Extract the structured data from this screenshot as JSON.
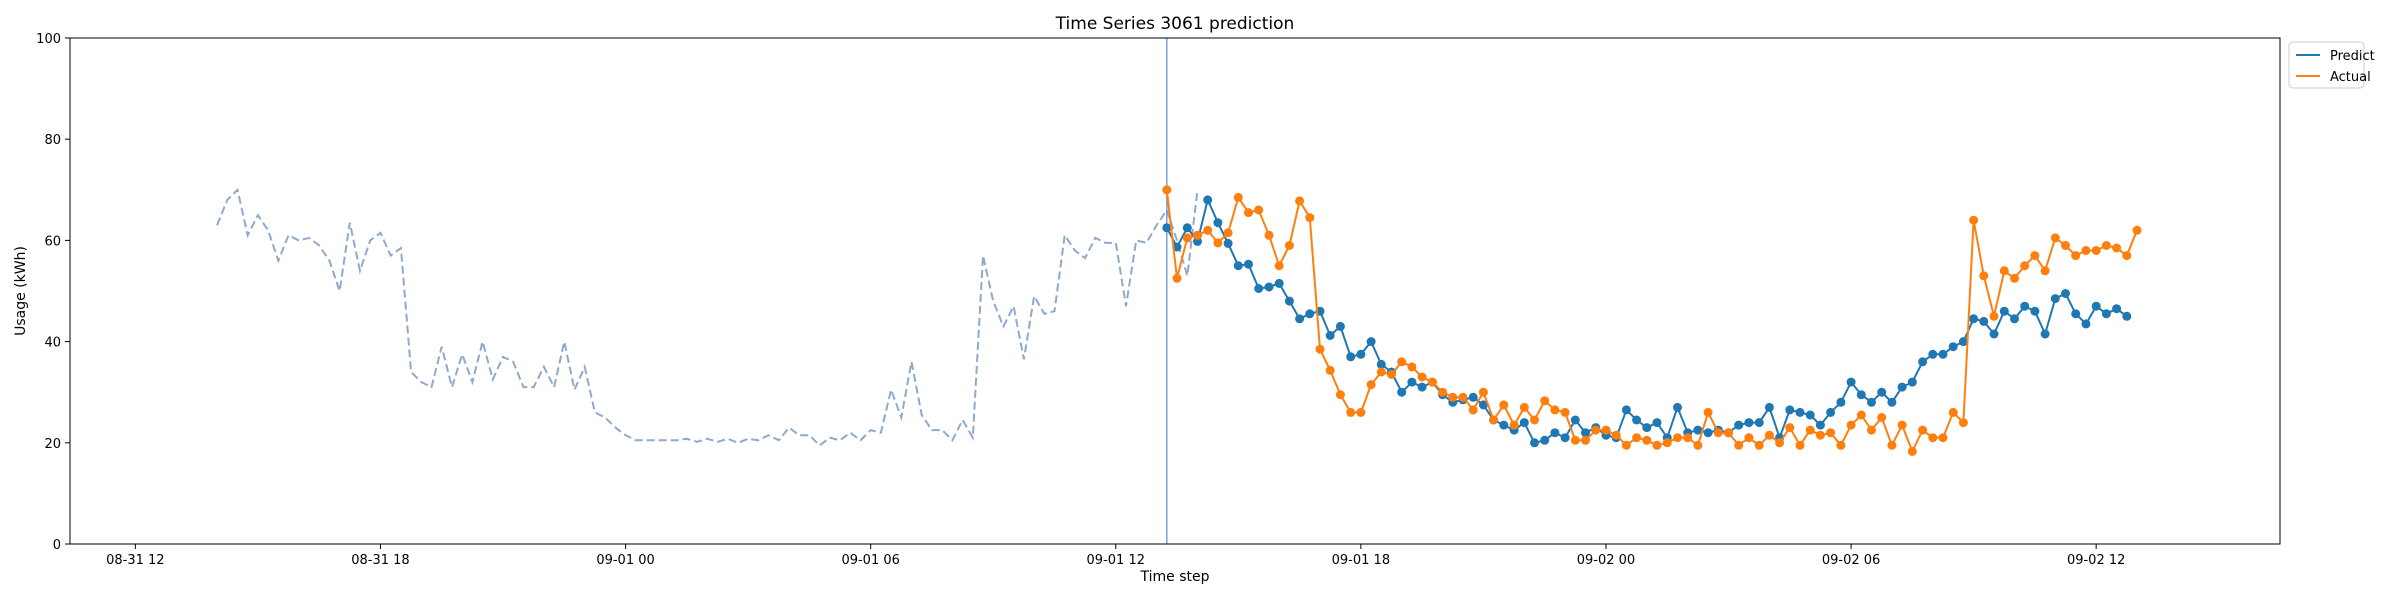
{
  "chart_data": {
    "type": "line",
    "title": "Time Series 3061 prediction",
    "xlabel": "Time step",
    "ylabel": "Usage (kWh)",
    "ylim": [
      0,
      100
    ],
    "xlim_hours": [
      -1.6,
      52.5
    ],
    "yticks": [
      0,
      20,
      40,
      60,
      80,
      100
    ],
    "xticks": [
      {
        "label": "08-31 12",
        "h": 0
      },
      {
        "label": "08-31 18",
        "h": 6
      },
      {
        "label": "09-01 00",
        "h": 12
      },
      {
        "label": "09-01 06",
        "h": 18
      },
      {
        "label": "09-01 12",
        "h": 24
      },
      {
        "label": "09-01 18",
        "h": 30
      },
      {
        "label": "09-02 00",
        "h": 36
      },
      {
        "label": "09-02 06",
        "h": 42
      },
      {
        "label": "09-02 12",
        "h": 48
      }
    ],
    "grid": false,
    "legend_position": "upper-right-outside",
    "forecast_start_h": 25.25,
    "history": {
      "start_h": 2.0,
      "step_h": 0.25,
      "color": "#8fa9cc",
      "values": [
        63,
        68,
        70,
        61,
        65,
        62,
        56,
        61,
        60,
        60.5,
        59,
        56,
        50,
        63.5,
        54,
        60,
        61.5,
        57,
        58.5,
        34,
        32,
        31,
        39,
        31,
        37.5,
        32,
        40,
        32.5,
        37,
        36,
        31,
        31,
        35,
        31,
        40,
        30.5,
        35,
        26,
        25,
        23,
        21.5,
        20.5,
        20.5,
        20.5,
        20.5,
        20.5,
        20.8,
        20.2,
        20.8,
        20.2,
        20.8,
        20,
        20.8,
        20.5,
        21.5,
        20.5,
        23,
        21.5,
        21.5,
        19.5,
        21,
        20.5,
        22,
        20.5,
        22.5,
        22,
        30.5,
        25,
        36,
        25.5,
        22.5,
        22.5,
        20.5,
        24.5,
        21,
        57,
        48,
        43,
        47,
        36.5,
        49,
        45.5,
        46,
        61,
        58,
        56.5,
        60.5,
        59.5,
        59.5,
        47,
        60,
        59.5,
        63,
        66,
        60,
        53,
        70
      ]
    },
    "series": [
      {
        "name": "Predict",
        "color": "#1f77b4",
        "start_h": 25.25,
        "step_h": 0.25,
        "values": [
          62.5,
          58.7,
          62.5,
          59.8,
          68.0,
          63.5,
          59.4,
          55.0,
          55.3,
          50.5,
          50.8,
          51.5,
          48.0,
          44.5,
          45.5,
          46.0,
          41.2,
          43.0,
          37.0,
          37.5,
          40.0,
          35.5,
          34.0,
          30.0,
          32.0,
          31.0,
          32.0,
          29.5,
          28.0,
          28.5,
          29.0,
          27.5,
          24.5,
          23.5,
          22.5,
          24.0,
          20.0,
          20.5,
          22.0,
          21.0,
          24.5,
          22.0,
          23.0,
          21.5,
          21.0,
          26.5,
          24.5,
          23.0,
          24.0,
          21.0,
          27.0,
          22.0,
          22.5,
          22.0,
          22.5,
          22.0,
          23.5,
          24.0,
          24.0,
          27.0,
          21.0,
          26.5,
          26.0,
          25.5,
          23.5,
          26.0,
          28.0,
          32.0,
          29.5,
          28.0,
          30.0,
          28.0,
          31.0,
          32.0,
          36.0,
          37.5,
          37.5,
          39.0,
          40.0,
          44.5,
          44.0,
          41.5,
          46.0,
          44.5,
          47.0,
          46.0,
          41.5,
          48.5,
          49.5,
          45.5,
          43.5,
          47.0,
          45.5,
          46.5,
          45.0
        ]
      },
      {
        "name": "Actual",
        "color": "#ff7f0e",
        "start_h": 25.25,
        "step_h": 0.25,
        "values": [
          70,
          52.5,
          60.5,
          61,
          62,
          59.5,
          61.5,
          68.5,
          65.5,
          66,
          61,
          55,
          59,
          67.8,
          64.5,
          38.5,
          34.3,
          29.5,
          26,
          26,
          31.5,
          34,
          33.5,
          36,
          35,
          33,
          32,
          30,
          29,
          29,
          26.5,
          30,
          24.5,
          27.5,
          23.5,
          27,
          24.5,
          28.3,
          26.5,
          26,
          20.5,
          20.5,
          22.5,
          22.5,
          21.5,
          19.5,
          21,
          20.5,
          19.5,
          20,
          21,
          21,
          19.5,
          26,
          22,
          22,
          19.5,
          21,
          19.5,
          21.5,
          20,
          23,
          19.5,
          22.5,
          21.5,
          22,
          19.5,
          23.5,
          25.5,
          22.5,
          25,
          19.5,
          23.5,
          18.3,
          22.5,
          21,
          21,
          26,
          24,
          64,
          53,
          45,
          54,
          52.5,
          55,
          57,
          54,
          60.5,
          59,
          57,
          58,
          58,
          59,
          58.5,
          57,
          62
        ]
      }
    ]
  }
}
